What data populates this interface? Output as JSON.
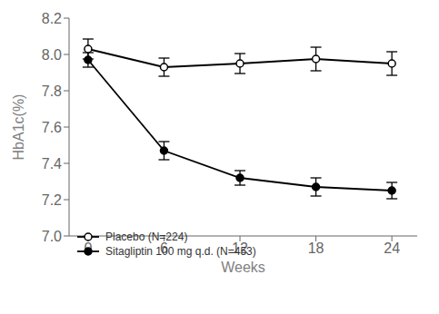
{
  "chart_data": {
    "type": "line",
    "x": [
      0,
      6,
      12,
      18,
      24
    ],
    "xlabel": "Weeks",
    "ylabel": "HbA1c(%)",
    "xlim": [
      -1.5,
      26
    ],
    "xticks": [
      0,
      6,
      12,
      18,
      24
    ],
    "ylim": [
      7.0,
      8.2
    ],
    "yticks": [
      {
        "value": 7.0,
        "label": "7.0"
      },
      7.2,
      7.4,
      7.6,
      7.8,
      {
        "value": 8.0,
        "label": "8.0"
      },
      8.2
    ],
    "grid": false,
    "legend": "lower left",
    "series": [
      {
        "name": "Placebo (N=224)",
        "color": "black",
        "marker": "open_circle",
        "line_style": "solid",
        "values": [
          8.03,
          7.93,
          7.95,
          7.975,
          7.95
        ],
        "errors": [
          0.055,
          0.05,
          0.055,
          0.065,
          0.065
        ]
      },
      {
        "name": "Sitagliptin 100 mg q.d. (N=453)",
        "color": "black",
        "marker": "filled_circle",
        "line_style": "solid",
        "values": [
          7.97,
          7.47,
          7.32,
          7.27,
          7.25
        ],
        "errors": [
          0.04,
          0.05,
          0.04,
          0.05,
          0.045
        ]
      }
    ]
  }
}
